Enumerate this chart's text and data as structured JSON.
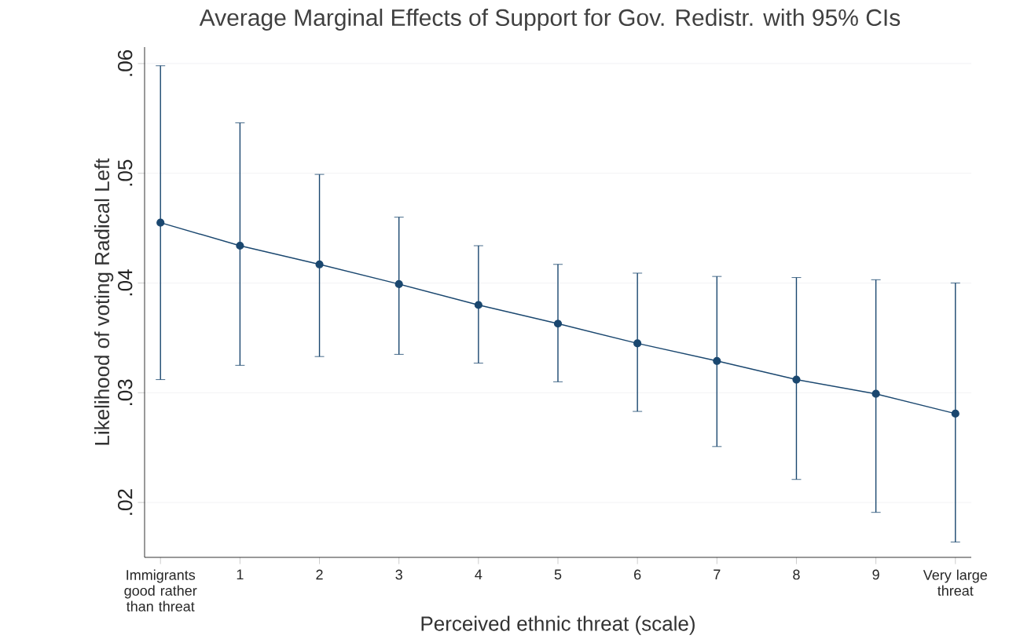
{
  "chart_data": {
    "type": "line",
    "title": "Average Marginal Effects of Support for Gov. Redistr. with 95% CIs",
    "xlabel": "Perceived ethnic threat (scale)",
    "ylabel": "Likelihood of voting Radical Left",
    "categories": [
      "Immigrants good rather than threat",
      "1",
      "2",
      "3",
      "4",
      "5",
      "6",
      "7",
      "8",
      "9",
      "Very large threat"
    ],
    "series": [
      {
        "color": "#1a476f",
        "values": [
          0.0455,
          0.0434,
          0.0417,
          0.0399,
          0.038,
          0.0363,
          0.0345,
          0.0329,
          0.0312,
          0.0299,
          0.0281
        ],
        "errors": [
          [
            0.0312,
            0.0598
          ],
          [
            0.0325,
            0.0546
          ],
          [
            0.0333,
            0.0499
          ],
          [
            0.0335,
            0.046
          ],
          [
            0.0327,
            0.0434
          ],
          [
            0.031,
            0.0417
          ],
          [
            0.0283,
            0.0409
          ],
          [
            0.0251,
            0.0406
          ],
          [
            0.0221,
            0.0405
          ],
          [
            0.0191,
            0.0403
          ],
          [
            0.0164,
            0.04
          ]
        ]
      }
    ],
    "ylim": [
      0.015,
      0.0615
    ],
    "yticks": [
      {
        "value": 0.02,
        "label": ".02"
      },
      {
        "value": 0.03,
        "label": ".03"
      },
      {
        "value": 0.04,
        "label": ".04"
      },
      {
        "value": 0.05,
        "label": ".05"
      },
      {
        "value": 0.06,
        "label": ".06"
      }
    ],
    "grid": "y",
    "marker": "circle",
    "line_style": "solid"
  }
}
